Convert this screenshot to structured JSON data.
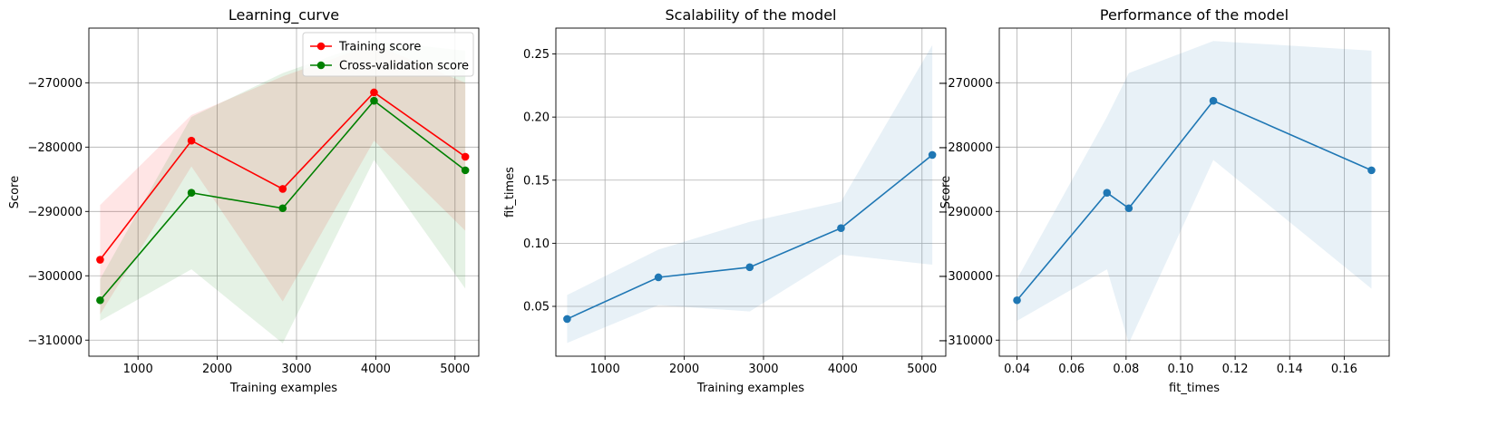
{
  "chart_data": [
    {
      "type": "line",
      "title": "Learning_curve",
      "xlabel": "Training examples",
      "ylabel": "Score",
      "xlim": [
        380,
        5300
      ],
      "ylim": [
        -312500,
        -261500
      ],
      "xticks": [
        1000,
        2000,
        3000,
        4000,
        5000
      ],
      "xtick_labels": [
        "1000",
        "2000",
        "3000",
        "4000",
        "5000"
      ],
      "yticks": [
        -310000,
        -300000,
        -290000,
        -280000,
        -270000
      ],
      "ytick_labels": [
        "−310000",
        "−300000",
        "−290000",
        "−280000",
        "−270000"
      ],
      "grid": true,
      "legend": "top-right",
      "x": [
        522,
        1674,
        2826,
        3978,
        5130
      ],
      "series": [
        {
          "name": "Training score",
          "color": "#ff0000",
          "values": [
            -297500,
            -279000,
            -286500,
            -271500,
            -281500
          ],
          "band_lower": [
            -306000,
            -283000,
            -304000,
            -279000,
            -293000
          ],
          "band_upper": [
            -289000,
            -275000,
            -269000,
            -264000,
            -270000
          ]
        },
        {
          "name": "Cross-validation score",
          "color": "#008000",
          "values": [
            -303800,
            -287100,
            -289500,
            -272800,
            -283600
          ],
          "band_lower": [
            -307000,
            -299000,
            -310500,
            -282000,
            -302000
          ],
          "band_upper": [
            -300500,
            -275300,
            -268500,
            -263500,
            -265000
          ]
        }
      ]
    },
    {
      "type": "line",
      "title": "Scalability of the model",
      "xlabel": "Training examples",
      "ylabel": "fit_times",
      "xlim": [
        380,
        5300
      ],
      "ylim": [
        0.0105,
        0.2705
      ],
      "xticks": [
        1000,
        2000,
        3000,
        4000,
        5000
      ],
      "xtick_labels": [
        "1000",
        "2000",
        "3000",
        "4000",
        "5000"
      ],
      "yticks": [
        0.05,
        0.1,
        0.15,
        0.2,
        0.25
      ],
      "ytick_labels": [
        "0.05",
        "0.10",
        "0.15",
        "0.20",
        "0.25"
      ],
      "grid": true,
      "x": [
        522,
        1674,
        2826,
        3978,
        5130
      ],
      "series": [
        {
          "color": "#1f77b4",
          "values": [
            0.04,
            0.073,
            0.081,
            0.112,
            0.17
          ],
          "band_lower": [
            0.021,
            0.051,
            0.046,
            0.091,
            0.083
          ],
          "band_upper": [
            0.059,
            0.095,
            0.117,
            0.133,
            0.257
          ]
        }
      ]
    },
    {
      "type": "line",
      "title": "Performance of the model",
      "xlabel": "fit_times",
      "ylabel": "Score",
      "xlim": [
        0.0335,
        0.1765
      ],
      "ylim": [
        -312500,
        -261500
      ],
      "xticks": [
        0.04,
        0.06,
        0.08,
        0.1,
        0.12,
        0.14,
        0.16
      ],
      "xtick_labels": [
        "0.04",
        "0.06",
        "0.08",
        "0.10",
        "0.12",
        "0.14",
        "0.16"
      ],
      "yticks": [
        -310000,
        -300000,
        -290000,
        -280000,
        -270000
      ],
      "ytick_labels": [
        "−310000",
        "−300000",
        "−290000",
        "−280000",
        "−270000"
      ],
      "grid": true,
      "x": [
        0.04,
        0.073,
        0.081,
        0.112,
        0.17
      ],
      "series": [
        {
          "color": "#1f77b4",
          "values": [
            -303800,
            -287100,
            -289500,
            -272800,
            -283600
          ],
          "band_lower": [
            -307000,
            -299000,
            -310500,
            -282000,
            -302000
          ],
          "band_upper": [
            -300500,
            -275300,
            -268500,
            -263500,
            -265000
          ]
        }
      ]
    }
  ]
}
